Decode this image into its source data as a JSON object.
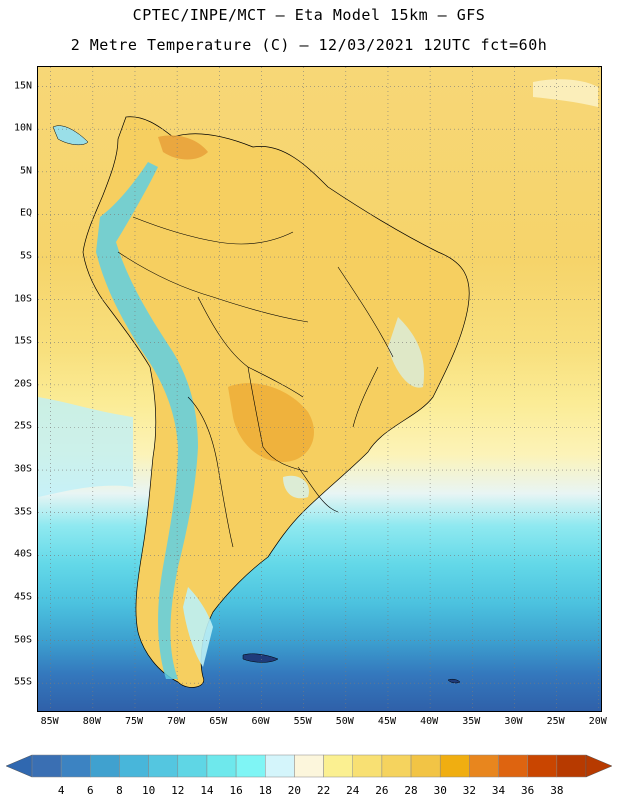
{
  "header": {
    "line1": "CPTEC/INPE/MCT –  Eta Model 15km – GFS",
    "line2": "2 Metre Temperature (C) – 12/03/2021 12UTC fct=60h"
  },
  "map": {
    "lat_labels": [
      "15N",
      "10N",
      "5N",
      "EQ",
      "5S",
      "10S",
      "15S",
      "20S",
      "25S",
      "30S",
      "35S",
      "40S",
      "45S",
      "50S",
      "55S"
    ],
    "lon_labels": [
      "85W",
      "80W",
      "75W",
      "70W",
      "65W",
      "60W",
      "55W",
      "50W",
      "45W",
      "40W",
      "35W",
      "30W",
      "25W",
      "20W"
    ],
    "lat_range": [
      17.3,
      -58.5
    ],
    "lon_range": [
      -86.5,
      -19.5
    ]
  },
  "colorbar": {
    "labels": [
      "4",
      "6",
      "8",
      "10",
      "12",
      "14",
      "16",
      "18",
      "20",
      "22",
      "24",
      "26",
      "28",
      "30",
      "32",
      "34",
      "36",
      "38"
    ],
    "colors": [
      "#3a6fb3",
      "#3c83c2",
      "#40a1cf",
      "#48b6da",
      "#54c6e0",
      "#5fd6e5",
      "#6ee8ec",
      "#7ff5f5",
      "#d4f5fb",
      "#fcf6dc",
      "#fbf091",
      "#f8e073",
      "#f5d35e",
      "#f2c445",
      "#f0ae11",
      "#e8861e",
      "#de6410",
      "#c94500",
      "#b73a00"
    ],
    "under_color": "#3068b0",
    "over_color": "#b73a00"
  }
}
